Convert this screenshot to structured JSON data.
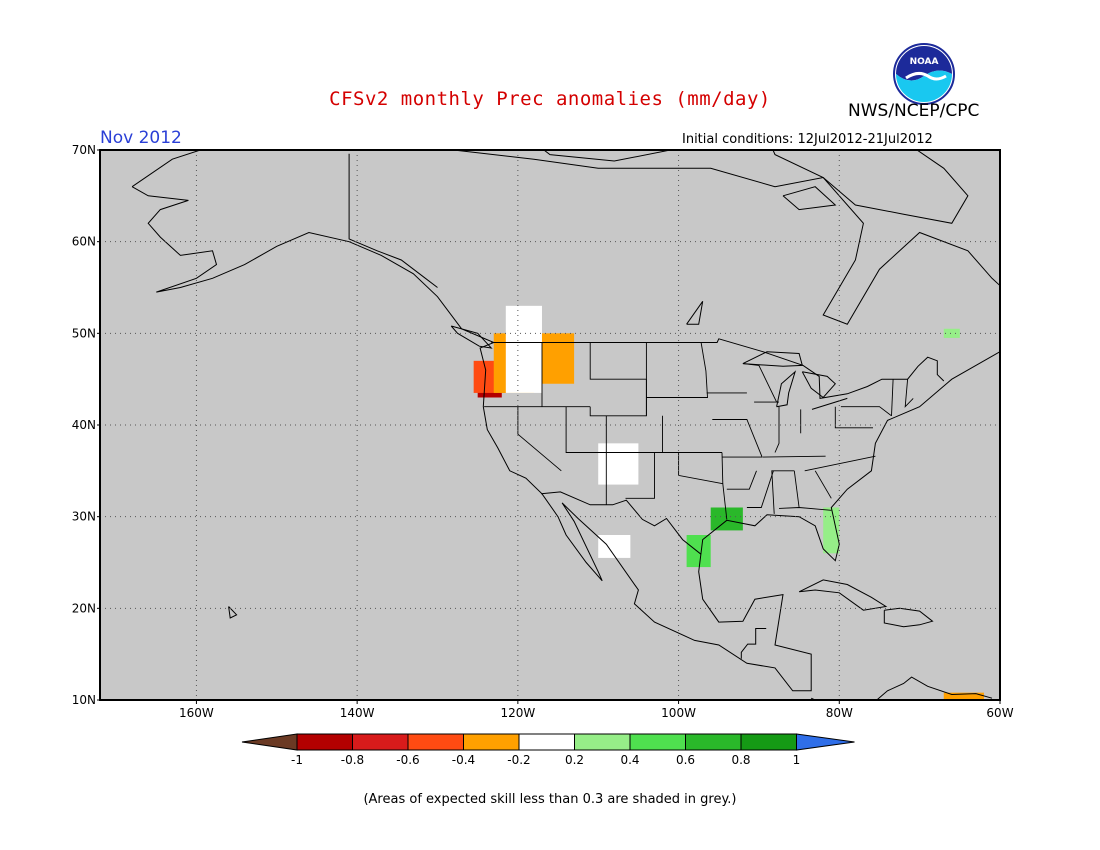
{
  "title": "CFSv2 monthly Prec anomalies (mm/day)",
  "organization": "NWS/NCEP/CPC",
  "logo": {
    "icon": "noaa-logo",
    "text": "NOAA"
  },
  "target_month": "Nov 2012",
  "initial_conditions": "Initial conditions: 12Jul2012-21Jul2012",
  "footnote": "(Areas of expected skill less than 0.3 are shaded in grey.)",
  "map": {
    "lon_range": [
      -172,
      -60
    ],
    "lat_range": [
      10,
      70
    ],
    "background_color": "#c8c8c8",
    "lon_ticks": [
      "160W",
      "140W",
      "120W",
      "100W",
      "80W",
      "60W"
    ],
    "lat_ticks": [
      "70N",
      "60N",
      "50N",
      "40N",
      "30N",
      "20N",
      "10N"
    ]
  },
  "colorbar": {
    "labels": [
      "-1",
      "-0.8",
      "-0.6",
      "-0.4",
      "-0.2",
      "0.2",
      "0.4",
      "0.6",
      "0.8",
      "1"
    ],
    "colors": [
      "#6b3a24",
      "#b30000",
      "#d81b1b",
      "#ff4b12",
      "#ffa000",
      "#ffffff",
      "#96ee88",
      "#4fe04f",
      "#2ab82a",
      "#159a15",
      "#2f6ee8"
    ]
  },
  "anomaly_regions": [
    {
      "name": "oregon-coast-strong-deficit",
      "value": -0.9,
      "lon": [
        -125,
        -122
      ],
      "lat": [
        43,
        46
      ]
    },
    {
      "name": "oregon-coast-deficit",
      "value": -0.6,
      "lon": [
        -125.5,
        -121.5
      ],
      "lat": [
        43.5,
        47
      ]
    },
    {
      "name": "pacific-northwest-dry",
      "value": -0.3,
      "lon": [
        -123,
        -118
      ],
      "lat": [
        43.5,
        50
      ]
    },
    {
      "name": "idaho-montana-dry",
      "value": -0.3,
      "lon": [
        -119,
        -113
      ],
      "lat": [
        44.5,
        50
      ]
    },
    {
      "name": "washington-near-normal",
      "value": 0.0,
      "lon": [
        -121.5,
        -117
      ],
      "lat": [
        43.5,
        53
      ]
    },
    {
      "name": "four-corners-near-normal",
      "value": 0.0,
      "lon": [
        -110,
        -105
      ],
      "lat": [
        33.5,
        38
      ]
    },
    {
      "name": "texas-gulf-coast-wet",
      "value": 0.7,
      "lon": [
        -96,
        -92
      ],
      "lat": [
        28.5,
        31
      ]
    },
    {
      "name": "south-texas-wet",
      "value": 0.5,
      "lon": [
        -99,
        -96
      ],
      "lat": [
        24.5,
        28
      ]
    },
    {
      "name": "florida-peninsula-wet",
      "value": 0.3,
      "lon": [
        -82,
        -80
      ],
      "lat": [
        26,
        31
      ]
    },
    {
      "name": "northern-mexico-near-normal",
      "value": 0.0,
      "lon": [
        -110,
        -106
      ],
      "lat": [
        25.5,
        28
      ]
    },
    {
      "name": "quebec-wet",
      "value": 0.3,
      "lon": [
        -67,
        -65
      ],
      "lat": [
        49.5,
        50.5
      ]
    },
    {
      "name": "venezuela-coast-deficit",
      "value": -0.3,
      "lon": [
        -67,
        -62
      ],
      "lat": [
        10,
        10.8
      ]
    }
  ]
}
